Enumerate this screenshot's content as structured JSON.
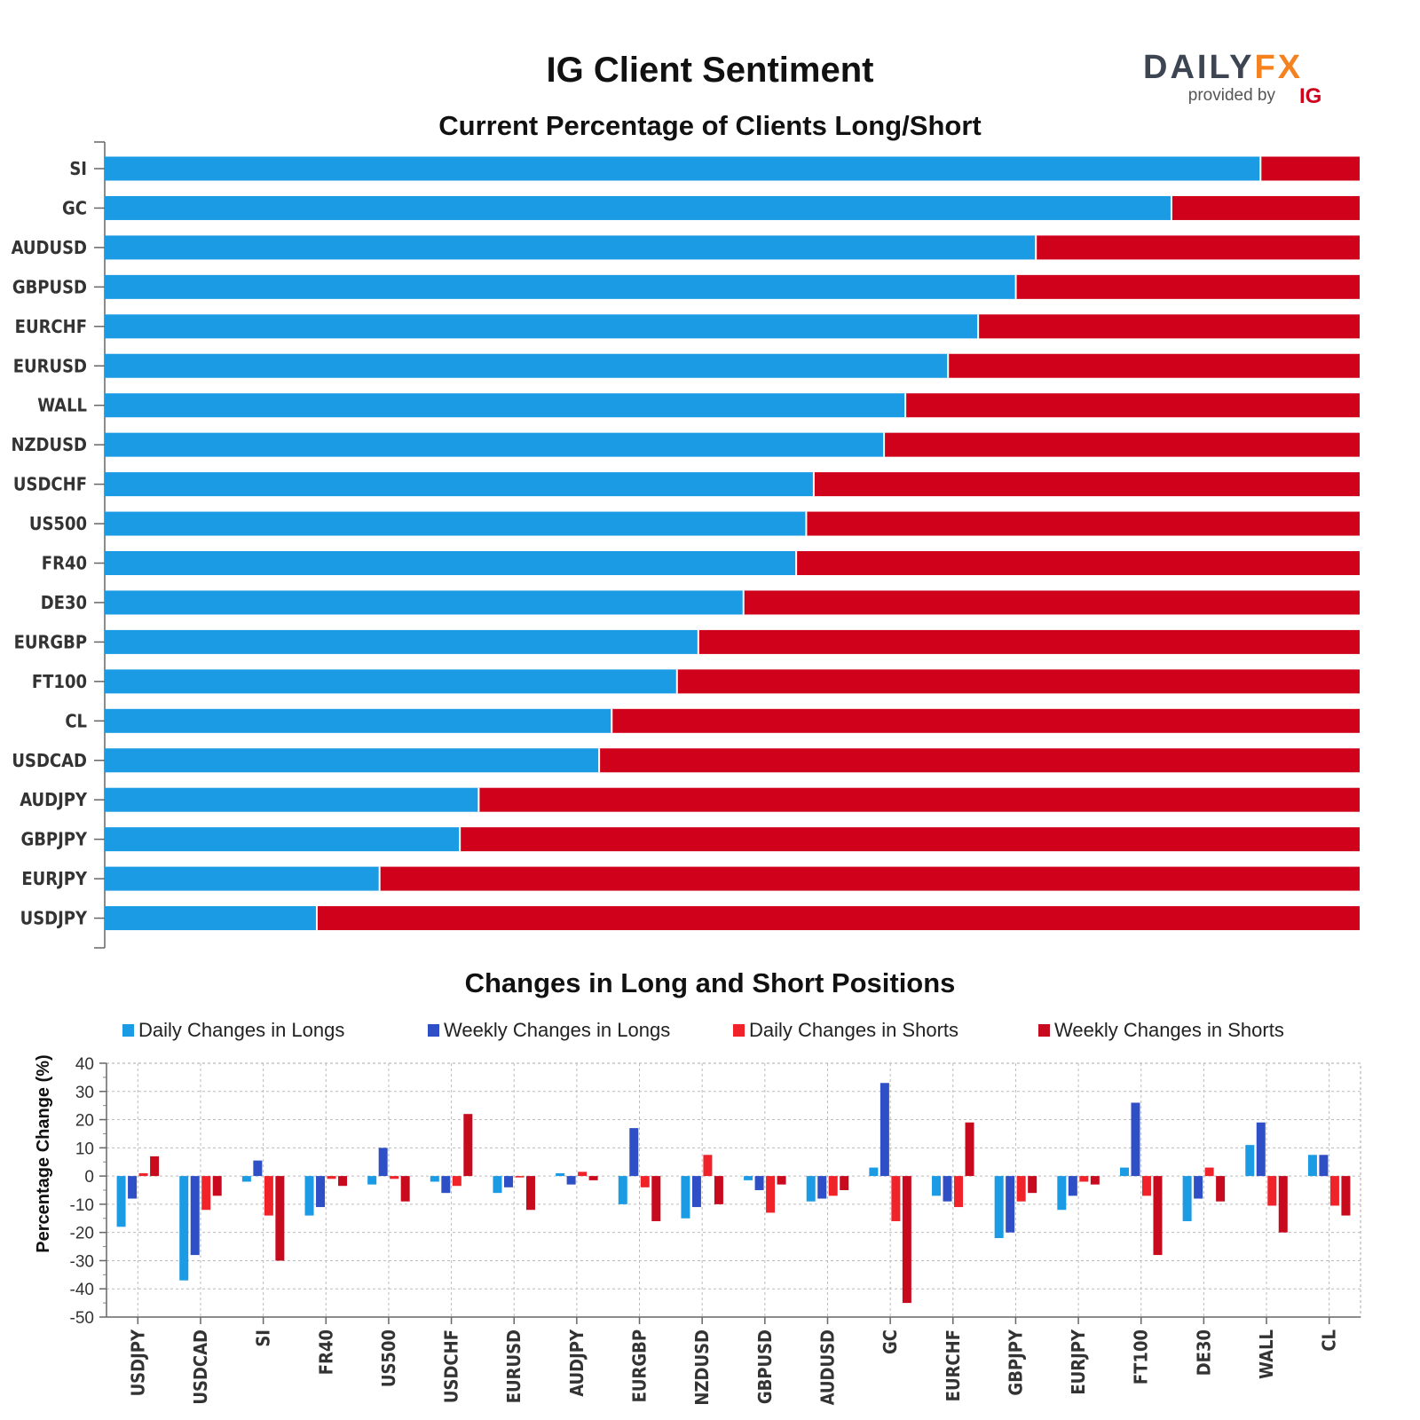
{
  "header": {
    "title": "IG Client Sentiment",
    "brand_left": "DAIL",
    "brand_y": "Y",
    "brand_right": "FX",
    "provided_by": "provided by",
    "ig": "IG"
  },
  "colors": {
    "long": "#1b9be4",
    "short": "#d0021b",
    "daily_longs": "#1b9be4",
    "weekly_longs": "#2f4fc7",
    "daily_shorts": "#f0222a",
    "weekly_shorts": "#c80a1e",
    "brand_dark": "#3d4452",
    "brand_orange": "#f5821f"
  },
  "chart_data": [
    {
      "type": "bar",
      "orientation": "horizontal",
      "stacked": true,
      "title": "Current Percentage of Clients Long/Short",
      "categories": [
        "SI",
        "GC",
        "AUDUSD",
        "GBPUSD",
        "EURCHF",
        "EURUSD",
        "WALL",
        "NZDUSD",
        "USDCHF",
        "US500",
        "FR40",
        "DE30",
        "EURGBP",
        "FT100",
        "CL",
        "USDCAD",
        "AUDJPY",
        "GBPJPY",
        "EURJPY",
        "USDJPY"
      ],
      "series": [
        {
          "values": [
            92.1,
            85.0,
            74.2,
            72.6,
            69.6,
            67.2,
            63.8,
            62.1,
            56.5,
            55.9,
            55.1,
            50.9,
            47.3,
            45.6,
            40.4,
            39.4,
            29.8,
            28.3,
            21.9,
            16.9
          ]
        },
        {
          "values": [
            7.9,
            15.0,
            25.8,
            27.4,
            30.4,
            32.8,
            36.2,
            37.9,
            43.5,
            44.1,
            44.9,
            49.1,
            52.7,
            54.4,
            59.6,
            60.6,
            70.2,
            71.7,
            78.1,
            83.1
          ]
        }
      ],
      "xlim": [
        0,
        100
      ]
    },
    {
      "type": "bar",
      "title": "Changes in Long and Short Positions",
      "ylabel": "Percentage Change (%)",
      "ylim": [
        -50,
        40
      ],
      "yticks": [
        40,
        30,
        20,
        10,
        0,
        -10,
        -20,
        -30,
        -40,
        -50
      ],
      "grid": true,
      "legend_position": "top",
      "categories": [
        "USDJPY",
        "USDCAD",
        "SI",
        "FR40",
        "US500",
        "USDCHF",
        "EURUSD",
        "AUDJPY",
        "EURGBP",
        "NZDUSD",
        "GBPUSD",
        "AUDUSD",
        "GC",
        "EURCHF",
        "GBPJPY",
        "EURJPY",
        "FT100",
        "DE30",
        "WALL",
        "CL"
      ],
      "series": [
        {
          "name": "Daily Changes in Longs",
          "values": [
            -18,
            -37,
            -2,
            -14,
            -3,
            -2,
            -6,
            1,
            -10,
            -15,
            -1.5,
            -9,
            3,
            -7,
            -22,
            -12,
            3,
            -16,
            11,
            7.5
          ]
        },
        {
          "name": "Weekly Changes in Longs",
          "values": [
            -8,
            -28,
            5.5,
            -11,
            10,
            -6,
            -4,
            -3,
            17,
            -11,
            -5,
            -8,
            33,
            -9,
            -20,
            -7,
            26,
            -8,
            19,
            7.5
          ]
        },
        {
          "name": "Daily Changes in Shorts",
          "values": [
            1,
            -12,
            -14,
            -1,
            -1,
            -3.5,
            -0.5,
            1.5,
            -4,
            7.5,
            -13,
            -7,
            -16,
            -11,
            -9,
            -2,
            -7,
            3,
            -10.5,
            -10.5
          ]
        },
        {
          "name": "Weekly Changes in Shorts",
          "values": [
            7,
            -7,
            -30,
            -3.5,
            -9,
            22,
            -12,
            -1.5,
            -16,
            -10,
            -3,
            -5,
            -45,
            19,
            -6,
            -3,
            -28,
            -9,
            -20,
            -14
          ]
        }
      ]
    }
  ]
}
